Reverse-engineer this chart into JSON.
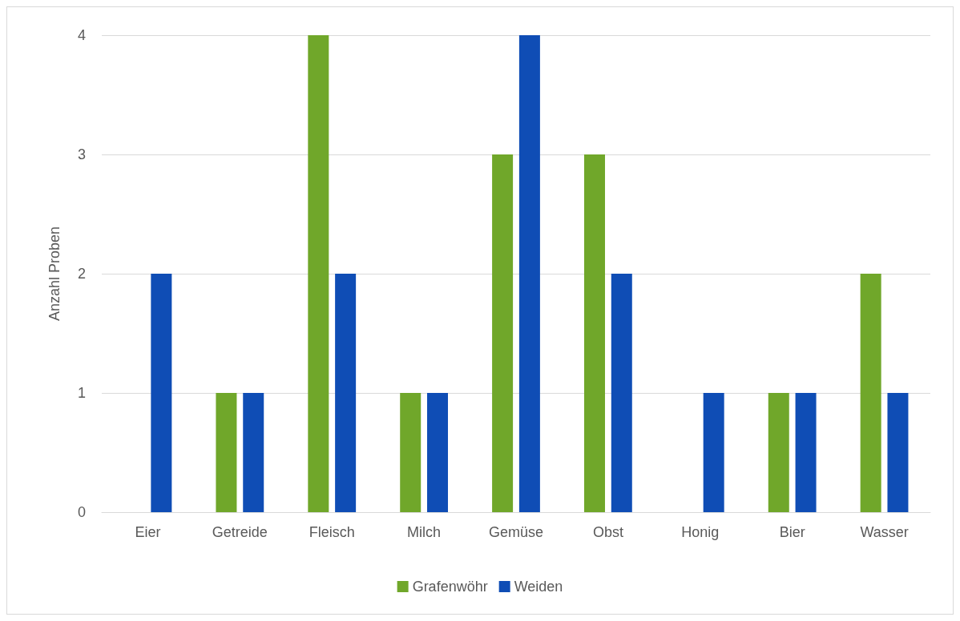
{
  "chart_data": {
    "type": "bar",
    "ylabel": "Anzahl Proben",
    "categories": [
      "Eier",
      "Getreide",
      "Fleisch",
      "Milch",
      "Gemüse",
      "Obst",
      "Honig",
      "Bier",
      "Wasser"
    ],
    "series": [
      {
        "name": "Grafenwöhr",
        "color": "#70a72a",
        "values": [
          0,
          1,
          4,
          1,
          3,
          3,
          0,
          1,
          2
        ]
      },
      {
        "name": "Weiden",
        "color": "#0f4db5",
        "values": [
          2,
          1,
          2,
          1,
          4,
          2,
          1,
          1,
          1
        ]
      }
    ],
    "ylim": [
      0,
      4
    ],
    "yticks": [
      0,
      1,
      2,
      3,
      4
    ],
    "grid": "y",
    "legend": "bottom"
  }
}
